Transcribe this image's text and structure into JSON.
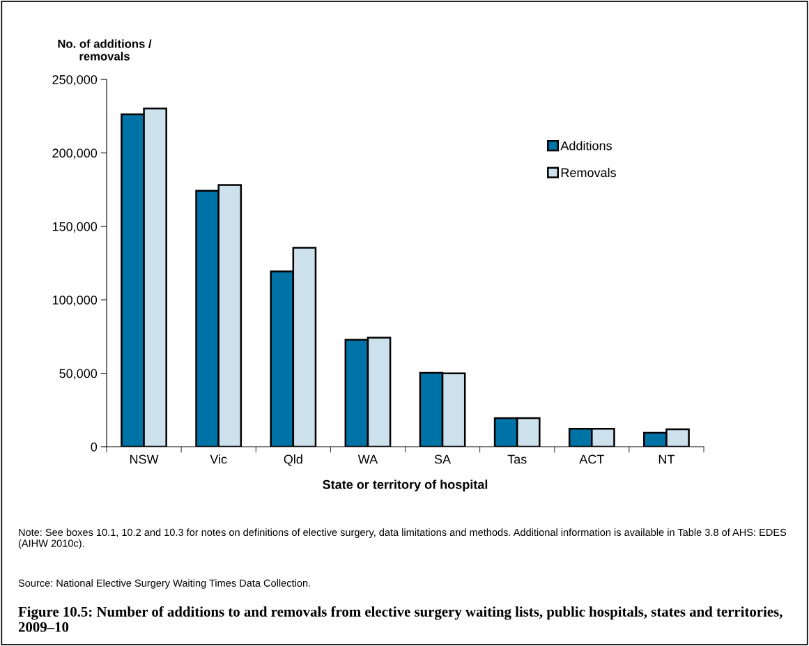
{
  "chart_data": {
    "type": "bar",
    "title": "Figure 10.5: Number of additions to and removals from elective surgery waiting lists, public hospitals, states and territories, 2009–10",
    "xlabel": "State or territory of hospital",
    "ylabel": "No. of additions /\nremovals",
    "categories": [
      "NSW",
      "Vic",
      "Qld",
      "WA",
      "SA",
      "Tas",
      "ACT",
      "NT"
    ],
    "series": [
      {
        "name": "Additions",
        "color": "#0073a6",
        "values": [
          226300,
          174200,
          119300,
          72800,
          50300,
          19500,
          12200,
          9500
        ]
      },
      {
        "name": "Removals",
        "color": "#cde1ec",
        "values": [
          230200,
          178100,
          135400,
          74300,
          49900,
          19500,
          12200,
          11900
        ]
      }
    ],
    "ylim": [
      0,
      250000
    ],
    "yticks": [
      {
        "value": 0,
        "label": "0"
      },
      {
        "value": 50000,
        "label": "50,000"
      },
      {
        "value": 100000,
        "label": "100,000"
      },
      {
        "value": 150000,
        "label": "150,000"
      },
      {
        "value": 200000,
        "label": "200,000"
      },
      {
        "value": 250000,
        "label": "250,000"
      }
    ],
    "grid": false,
    "legend": "right",
    "annotations": [
      "Note: See boxes 10.1, 10.2 and 10.3 for notes on definitions of elective surgery, data limitations and methods. Additional information is available in Table 3.8 of AHS: EDES (AIHW 2010c).",
      "Source: National Elective Surgery Waiting Times Data Collection."
    ]
  }
}
